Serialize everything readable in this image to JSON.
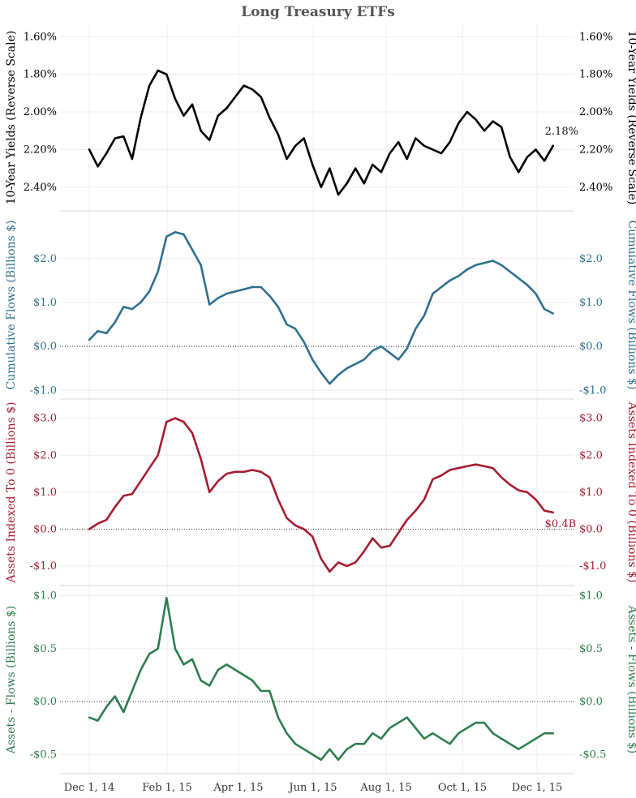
{
  "chart_data": {
    "type": "line",
    "title": "Long Treasury ETFs",
    "x_ticks": [
      "Dec 1, 14",
      "Feb 1, 15",
      "Apr 1, 15",
      "Jun 1, 15",
      "Aug 1, 15",
      "Oct 1, 15",
      "Dec 1, 15"
    ],
    "x_range": [
      "2014-11-24",
      "2015-12-18"
    ],
    "grid": true,
    "panels": [
      {
        "name": "yields",
        "ylabel": "10-Year Yields (Reverse Scale)",
        "reverse": true,
        "ylim": [
          1.56,
          2.5
        ],
        "ticks": [
          1.6,
          1.8,
          2.0,
          2.2,
          2.4
        ],
        "tick_labels": [
          "1.60%",
          "1.80%",
          "2.00%",
          "2.20%",
          "2.40%"
        ],
        "color": "#000000",
        "zero_line": false,
        "end_label": "2.18%",
        "series": {
          "name": "10-Year Yield",
          "x": [
            "2014-12-01",
            "2014-12-08",
            "2014-12-15",
            "2014-12-22",
            "2014-12-29",
            "2015-01-05",
            "2015-01-12",
            "2015-01-19",
            "2015-01-26",
            "2015-02-02",
            "2015-02-09",
            "2015-02-16",
            "2015-02-23",
            "2015-03-02",
            "2015-03-09",
            "2015-03-16",
            "2015-03-23",
            "2015-03-30",
            "2015-04-06",
            "2015-04-13",
            "2015-04-20",
            "2015-04-27",
            "2015-05-04",
            "2015-05-11",
            "2015-05-18",
            "2015-05-25",
            "2015-06-01",
            "2015-06-08",
            "2015-06-15",
            "2015-06-22",
            "2015-06-29",
            "2015-07-06",
            "2015-07-13",
            "2015-07-20",
            "2015-07-27",
            "2015-08-03",
            "2015-08-10",
            "2015-08-17",
            "2015-08-24",
            "2015-08-31",
            "2015-09-07",
            "2015-09-14",
            "2015-09-21",
            "2015-09-28",
            "2015-10-05",
            "2015-10-12",
            "2015-10-19",
            "2015-10-26",
            "2015-11-02",
            "2015-11-09",
            "2015-11-16",
            "2015-11-23",
            "2015-11-30",
            "2015-12-07",
            "2015-12-14"
          ],
          "values": [
            2.2,
            2.29,
            2.22,
            2.14,
            2.13,
            2.25,
            2.03,
            1.86,
            1.78,
            1.8,
            1.93,
            2.02,
            1.96,
            2.1,
            2.15,
            2.02,
            1.98,
            1.92,
            1.86,
            1.88,
            1.92,
            2.03,
            2.12,
            2.25,
            2.18,
            2.14,
            2.28,
            2.4,
            2.3,
            2.44,
            2.38,
            2.3,
            2.38,
            2.28,
            2.32,
            2.22,
            2.16,
            2.25,
            2.14,
            2.18,
            2.2,
            2.22,
            2.16,
            2.06,
            2.0,
            2.04,
            2.1,
            2.05,
            2.08,
            2.24,
            2.32,
            2.24,
            2.2,
            2.26,
            2.18
          ]
        }
      },
      {
        "name": "flows",
        "ylabel": "Cumulative Flows (Billions $)",
        "reverse": false,
        "ylim": [
          -1.05,
          2.9
        ],
        "ticks": [
          -1.0,
          0.0,
          1.0,
          2.0
        ],
        "tick_labels": [
          "-$1.0",
          "$0.0",
          "$1.0",
          "$2.0"
        ],
        "color": "#2f6f8f",
        "zero_line": true,
        "end_label": "",
        "series": {
          "name": "Cumulative Flows",
          "x": [
            "2014-12-01",
            "2014-12-08",
            "2014-12-15",
            "2014-12-22",
            "2014-12-29",
            "2015-01-05",
            "2015-01-12",
            "2015-01-19",
            "2015-01-26",
            "2015-02-02",
            "2015-02-09",
            "2015-02-16",
            "2015-02-23",
            "2015-03-02",
            "2015-03-09",
            "2015-03-16",
            "2015-03-23",
            "2015-03-30",
            "2015-04-06",
            "2015-04-13",
            "2015-04-20",
            "2015-04-27",
            "2015-05-04",
            "2015-05-11",
            "2015-05-18",
            "2015-05-25",
            "2015-06-01",
            "2015-06-08",
            "2015-06-15",
            "2015-06-22",
            "2015-06-29",
            "2015-07-06",
            "2015-07-13",
            "2015-07-20",
            "2015-07-27",
            "2015-08-03",
            "2015-08-10",
            "2015-08-17",
            "2015-08-24",
            "2015-08-31",
            "2015-09-07",
            "2015-09-14",
            "2015-09-21",
            "2015-09-28",
            "2015-10-05",
            "2015-10-12",
            "2015-10-19",
            "2015-10-26",
            "2015-11-02",
            "2015-11-09",
            "2015-11-16",
            "2015-11-23",
            "2015-11-30",
            "2015-12-07",
            "2015-12-14"
          ],
          "values": [
            0.15,
            0.35,
            0.3,
            0.55,
            0.9,
            0.85,
            1.0,
            1.25,
            1.7,
            2.5,
            2.6,
            2.55,
            2.2,
            1.85,
            0.95,
            1.1,
            1.2,
            1.25,
            1.3,
            1.35,
            1.35,
            1.15,
            0.9,
            0.5,
            0.4,
            0.1,
            -0.3,
            -0.6,
            -0.85,
            -0.65,
            -0.5,
            -0.4,
            -0.3,
            -0.1,
            0.0,
            -0.15,
            -0.3,
            -0.05,
            0.4,
            0.7,
            1.2,
            1.35,
            1.5,
            1.6,
            1.75,
            1.85,
            1.9,
            1.95,
            1.85,
            1.7,
            1.55,
            1.4,
            1.2,
            0.85,
            0.75
          ]
        }
      },
      {
        "name": "assets",
        "ylabel": "Assets Indexed To 0 (Billions $)",
        "reverse": false,
        "ylim": [
          -1.35,
          3.3
        ],
        "ticks": [
          -1.0,
          0.0,
          1.0,
          2.0,
          3.0
        ],
        "tick_labels": [
          "-$1.0",
          "$0.0",
          "$1.0",
          "$2.0",
          "$3.0"
        ],
        "color": "#a51c30",
        "zero_line": true,
        "end_label": "$0.4B",
        "series": {
          "name": "Assets Indexed To 0",
          "x": [
            "2014-12-01",
            "2014-12-08",
            "2014-12-15",
            "2014-12-22",
            "2014-12-29",
            "2015-01-05",
            "2015-01-12",
            "2015-01-19",
            "2015-01-26",
            "2015-02-02",
            "2015-02-09",
            "2015-02-16",
            "2015-02-23",
            "2015-03-02",
            "2015-03-09",
            "2015-03-16",
            "2015-03-23",
            "2015-03-30",
            "2015-04-06",
            "2015-04-13",
            "2015-04-20",
            "2015-04-27",
            "2015-05-04",
            "2015-05-11",
            "2015-05-18",
            "2015-05-25",
            "2015-06-01",
            "2015-06-08",
            "2015-06-15",
            "2015-06-22",
            "2015-06-29",
            "2015-07-06",
            "2015-07-13",
            "2015-07-20",
            "2015-07-27",
            "2015-08-03",
            "2015-08-10",
            "2015-08-17",
            "2015-08-24",
            "2015-08-31",
            "2015-09-07",
            "2015-09-14",
            "2015-09-21",
            "2015-09-28",
            "2015-10-05",
            "2015-10-12",
            "2015-10-19",
            "2015-10-26",
            "2015-11-02",
            "2015-11-09",
            "2015-11-16",
            "2015-11-23",
            "2015-11-30",
            "2015-12-07",
            "2015-12-14"
          ],
          "values": [
            0.0,
            0.15,
            0.25,
            0.6,
            0.9,
            0.95,
            1.3,
            1.65,
            2.0,
            2.9,
            3.0,
            2.9,
            2.6,
            1.9,
            1.0,
            1.3,
            1.5,
            1.55,
            1.55,
            1.6,
            1.55,
            1.4,
            0.8,
            0.3,
            0.1,
            0.0,
            -0.2,
            -0.8,
            -1.15,
            -0.9,
            -1.0,
            -0.9,
            -0.6,
            -0.25,
            -0.5,
            -0.45,
            -0.1,
            0.25,
            0.5,
            0.8,
            1.35,
            1.45,
            1.6,
            1.65,
            1.7,
            1.75,
            1.7,
            1.65,
            1.4,
            1.2,
            1.05,
            1.0,
            0.8,
            0.5,
            0.45
          ]
        }
      },
      {
        "name": "diff",
        "ylabel": "Assets - Flows (Billions $)",
        "reverse": false,
        "ylim": [
          -0.62,
          1.02
        ],
        "ticks": [
          -0.5,
          0.0,
          0.5,
          1.0
        ],
        "tick_labels": [
          "-$0.5",
          "$0.0",
          "$0.5",
          "$1.0"
        ],
        "color": "#2e7d4f",
        "zero_line": true,
        "end_label": "",
        "series": {
          "name": "Assets - Flows",
          "x": [
            "2014-12-01",
            "2014-12-08",
            "2014-12-15",
            "2014-12-22",
            "2014-12-29",
            "2015-01-05",
            "2015-01-12",
            "2015-01-19",
            "2015-01-26",
            "2015-02-02",
            "2015-02-09",
            "2015-02-16",
            "2015-02-23",
            "2015-03-02",
            "2015-03-09",
            "2015-03-16",
            "2015-03-23",
            "2015-03-30",
            "2015-04-06",
            "2015-04-13",
            "2015-04-20",
            "2015-04-27",
            "2015-05-04",
            "2015-05-11",
            "2015-05-18",
            "2015-05-25",
            "2015-06-01",
            "2015-06-08",
            "2015-06-15",
            "2015-06-22",
            "2015-06-29",
            "2015-07-06",
            "2015-07-13",
            "2015-07-20",
            "2015-07-27",
            "2015-08-03",
            "2015-08-10",
            "2015-08-17",
            "2015-08-24",
            "2015-08-31",
            "2015-09-07",
            "2015-09-14",
            "2015-09-21",
            "2015-09-28",
            "2015-10-05",
            "2015-10-12",
            "2015-10-19",
            "2015-10-26",
            "2015-11-02",
            "2015-11-09",
            "2015-11-16",
            "2015-11-23",
            "2015-11-30",
            "2015-12-07",
            "2015-12-14"
          ],
          "values": [
            -0.15,
            -0.18,
            -0.05,
            0.05,
            -0.1,
            0.1,
            0.3,
            0.45,
            0.5,
            0.98,
            0.5,
            0.35,
            0.4,
            0.2,
            0.15,
            0.3,
            0.35,
            0.3,
            0.25,
            0.2,
            0.1,
            0.1,
            -0.15,
            -0.3,
            -0.4,
            -0.45,
            -0.5,
            -0.55,
            -0.45,
            -0.55,
            -0.45,
            -0.4,
            -0.4,
            -0.3,
            -0.35,
            -0.25,
            -0.2,
            -0.15,
            -0.25,
            -0.35,
            -0.3,
            -0.35,
            -0.4,
            -0.3,
            -0.25,
            -0.2,
            -0.2,
            -0.3,
            -0.35,
            -0.4,
            -0.45,
            -0.4,
            -0.35,
            -0.3,
            -0.3
          ]
        }
      }
    ]
  }
}
